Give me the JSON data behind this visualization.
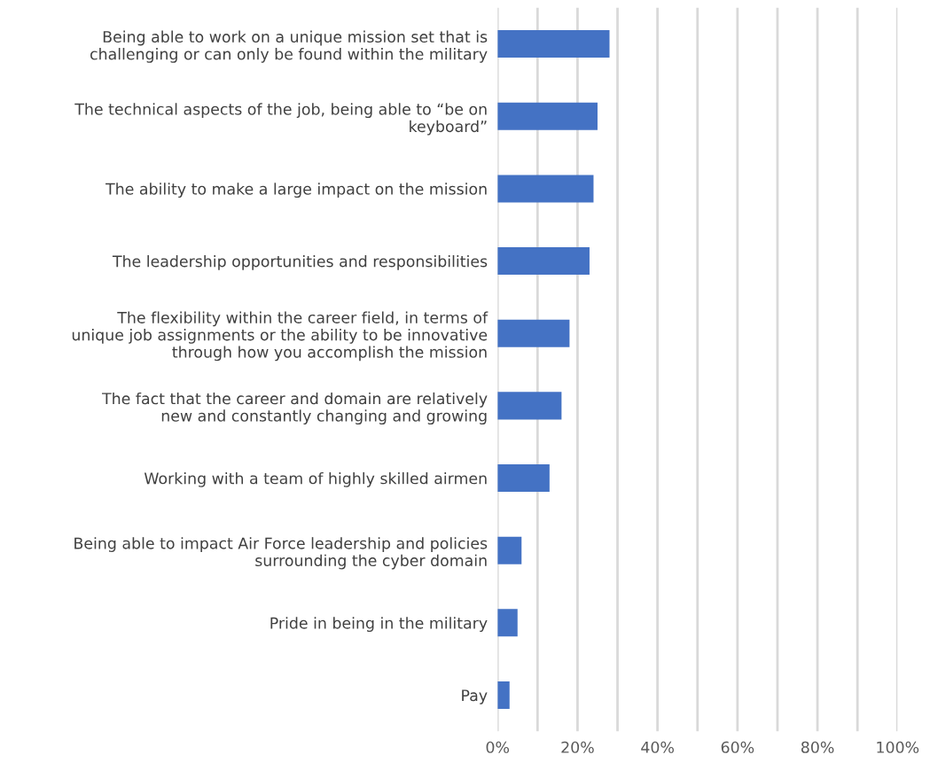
{
  "chart_data": {
    "type": "bar",
    "orientation": "horizontal",
    "categories": [
      "Being able to work on a unique mission set that is\nchallenging or can only be found within the military",
      "The technical aspects of the job, being able to “be on\nkeyboard”",
      "The ability to make a large impact on the mission",
      "The leadership opportunities and responsibilities",
      "The flexibility within the career field, in terms of\nunique job assignments or the ability to be innovative\nthrough how you accomplish the mission",
      "The fact that the career and domain are relatively\nnew and constantly changing and growing",
      "Working with a team of highly skilled airmen",
      "Being able to impact Air Force leadership and policies\nsurrounding the cyber domain",
      "Pride in being in the military",
      "Pay"
    ],
    "values": [
      28,
      25,
      24,
      23,
      18,
      16,
      13,
      6,
      5,
      3
    ],
    "color": "#4472c4",
    "xlim": [
      0,
      100
    ],
    "xticks": [
      {
        "value": 0,
        "label": "0%"
      },
      {
        "value": 10,
        "label": null
      },
      {
        "value": 20,
        "label": "20%"
      },
      {
        "value": 30,
        "label": null
      },
      {
        "value": 40,
        "label": "40%"
      },
      {
        "value": 50,
        "label": null
      },
      {
        "value": 60,
        "label": "60%"
      },
      {
        "value": 70,
        "label": null
      },
      {
        "value": 80,
        "label": "80%"
      },
      {
        "value": 90,
        "label": null
      },
      {
        "value": 100,
        "label": "100%"
      }
    ],
    "grid": "x",
    "legend": false
  }
}
